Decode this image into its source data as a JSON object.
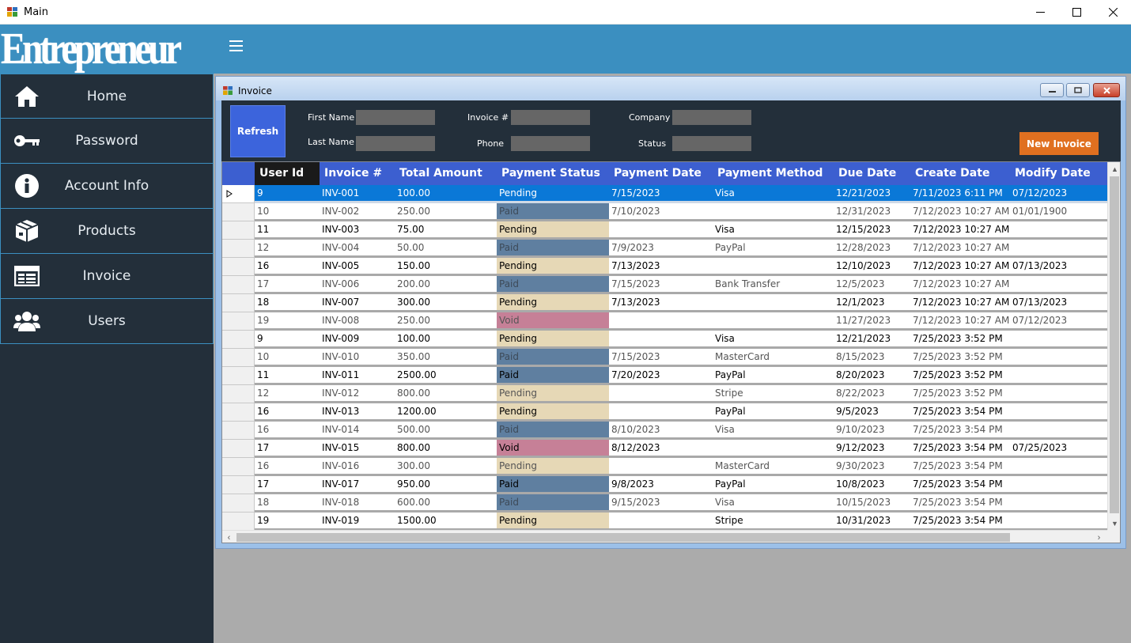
{
  "window": {
    "title": "Main"
  },
  "brand": {
    "logo": "Entrepreneur"
  },
  "sidebar": {
    "items": [
      {
        "label": "Home",
        "icon": "home-icon"
      },
      {
        "label": "Password",
        "icon": "key-icon"
      },
      {
        "label": "Account Info",
        "icon": "info-icon"
      },
      {
        "label": "Products",
        "icon": "box-icon"
      },
      {
        "label": "Invoice",
        "icon": "invoice-icon"
      },
      {
        "label": "Users",
        "icon": "users-icon"
      }
    ]
  },
  "invoice_window": {
    "title": "Invoice",
    "refresh_label": "Refresh",
    "new_invoice_label": "New Invoice",
    "filters": {
      "first_name_label": "First Name",
      "last_name_label": "Last Name",
      "invoice_label": "Invoice #",
      "phone_label": "Phone",
      "company_label": "Company",
      "status_label": "Status"
    }
  },
  "colors": {
    "header": "#3b8fc0",
    "sidebar": "#232f3a",
    "grid_header": "#3c5fd0",
    "selection": "#0a78d7",
    "paid": "#5f7fa0",
    "pending": "#e6d8b6",
    "void": "#c68097",
    "new_invoice": "#e07020"
  },
  "table": {
    "columns": [
      "User Id",
      "Invoice #",
      "Total Amount",
      "Payment Status",
      "Payment Date",
      "Payment Method",
      "Due Date",
      "Create Date",
      "Modify Date"
    ],
    "rows": [
      [
        "9",
        "INV-001",
        "100.00",
        "Pending",
        "7/15/2023",
        "Visa",
        "12/21/2023",
        "7/11/2023 6:11 PM",
        "07/12/2023"
      ],
      [
        "10",
        "INV-002",
        "250.00",
        "Paid",
        "7/10/2023",
        "",
        "12/31/2023",
        "7/12/2023 10:27 AM",
        "01/01/1900"
      ],
      [
        "11",
        "INV-003",
        "75.00",
        "Pending",
        "",
        "Visa",
        "12/15/2023",
        "7/12/2023 10:27 AM",
        ""
      ],
      [
        "12",
        "INV-004",
        "50.00",
        "Paid",
        "7/9/2023",
        "PayPal",
        "12/28/2023",
        "7/12/2023 10:27 AM",
        ""
      ],
      [
        "16",
        "INV-005",
        "150.00",
        "Pending",
        "7/13/2023",
        "",
        "12/10/2023",
        "7/12/2023 10:27 AM",
        "07/13/2023"
      ],
      [
        "17",
        "INV-006",
        "200.00",
        "Paid",
        "7/15/2023",
        "Bank Transfer",
        "12/5/2023",
        "7/12/2023 10:27 AM",
        ""
      ],
      [
        "18",
        "INV-007",
        "300.00",
        "Pending",
        "7/13/2023",
        "",
        "12/1/2023",
        "7/12/2023 10:27 AM",
        "07/13/2023"
      ],
      [
        "19",
        "INV-008",
        "250.00",
        "Void",
        "",
        "",
        "11/27/2023",
        "7/12/2023 10:27 AM",
        "07/12/2023"
      ],
      [
        "9",
        "INV-009",
        "100.00",
        "Pending",
        "",
        "Visa",
        "12/21/2023",
        "7/25/2023 3:52 PM",
        ""
      ],
      [
        "10",
        "INV-010",
        "350.00",
        "Paid",
        "7/15/2023",
        "MasterCard",
        "8/15/2023",
        "7/25/2023 3:52 PM",
        ""
      ],
      [
        "11",
        "INV-011",
        "2500.00",
        "Paid",
        "7/20/2023",
        "PayPal",
        "8/20/2023",
        "7/25/2023 3:52 PM",
        ""
      ],
      [
        "12",
        "INV-012",
        "800.00",
        "Pending",
        "",
        "Stripe",
        "8/22/2023",
        "7/25/2023 3:52 PM",
        ""
      ],
      [
        "16",
        "INV-013",
        "1200.00",
        "Pending",
        "",
        "PayPal",
        "9/5/2023",
        "7/25/2023 3:54 PM",
        ""
      ],
      [
        "16",
        "INV-014",
        "500.00",
        "Paid",
        "8/10/2023",
        "Visa",
        "9/10/2023",
        "7/25/2023 3:54 PM",
        ""
      ],
      [
        "17",
        "INV-015",
        "800.00",
        "Void",
        "8/12/2023",
        "",
        "9/12/2023",
        "7/25/2023 3:54 PM",
        "07/25/2023"
      ],
      [
        "16",
        "INV-016",
        "300.00",
        "Pending",
        "",
        "MasterCard",
        "9/30/2023",
        "7/25/2023 3:54 PM",
        ""
      ],
      [
        "17",
        "INV-017",
        "950.00",
        "Paid",
        "9/8/2023",
        "PayPal",
        "10/8/2023",
        "7/25/2023 3:54 PM",
        ""
      ],
      [
        "18",
        "INV-018",
        "600.00",
        "Paid",
        "9/15/2023",
        "Visa",
        "10/15/2023",
        "7/25/2023 3:54 PM",
        ""
      ],
      [
        "19",
        "INV-019",
        "1500.00",
        "Pending",
        "",
        "Stripe",
        "10/31/2023",
        "7/25/2023 3:54 PM",
        ""
      ]
    ],
    "dim_rows": [
      1,
      3,
      5,
      7,
      9,
      11,
      13,
      15,
      17
    ]
  }
}
